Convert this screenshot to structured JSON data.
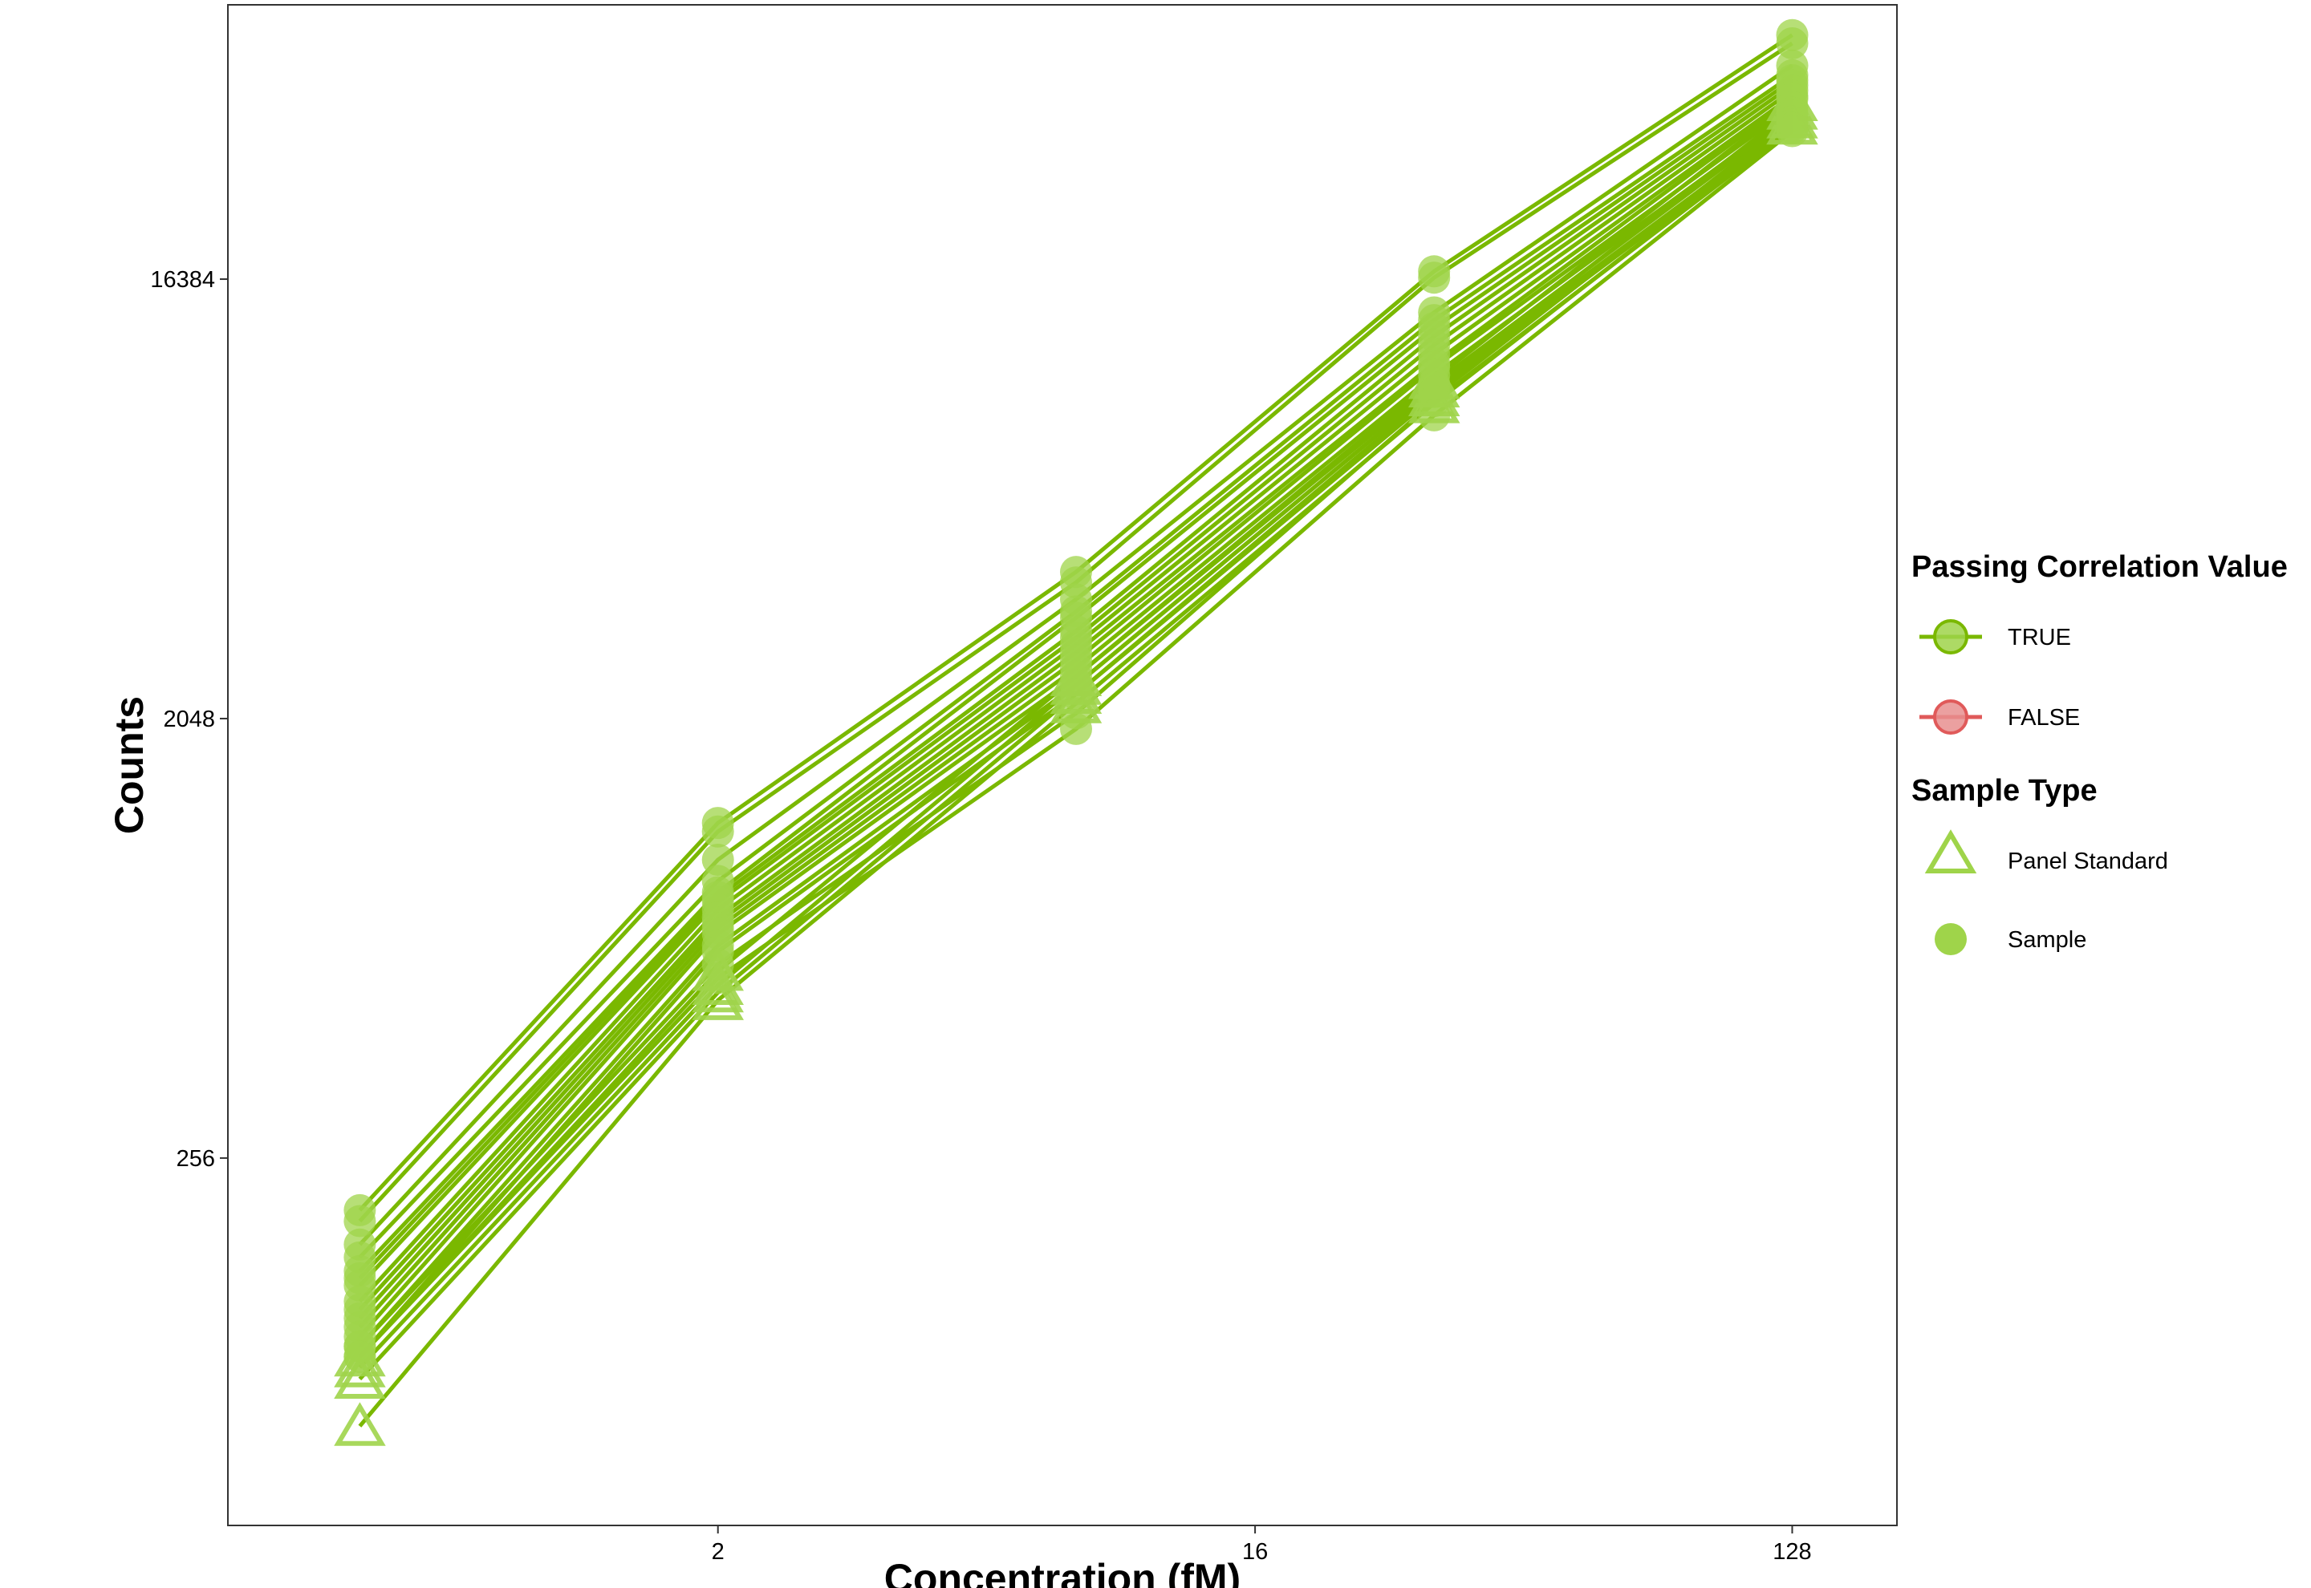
{
  "chart_data": {
    "type": "line",
    "title": "",
    "xlabel": "Concentration (fM)",
    "ylabel": "Counts",
    "x_scale": "log2",
    "y_scale": "log2",
    "x_ticks": [
      2,
      16,
      128
    ],
    "y_ticks": [
      256,
      2048,
      16384
    ],
    "xlim": [
      0.3,
      192
    ],
    "ylim": [
      45,
      60000
    ],
    "grid": false,
    "x": [
      0.5,
      2,
      8,
      32,
      128
    ],
    "colors": {
      "TRUE": "#7ab800",
      "FALSE": "#e05a5a",
      "marker": "#9fd44a"
    },
    "series": [
      {
        "group": "TRUE",
        "shape": "triangle",
        "values": [
          72,
          540,
          2200,
          9100,
          34000
        ]
      },
      {
        "group": "TRUE",
        "shape": "triangle",
        "values": [
          90,
          560,
          2300,
          9400,
          35000
        ]
      },
      {
        "group": "TRUE",
        "shape": "triangle",
        "values": [
          95,
          580,
          2400,
          9800,
          36500
        ]
      },
      {
        "group": "TRUE",
        "shape": "triangle",
        "values": [
          100,
          620,
          2500,
          10200,
          38000
        ]
      },
      {
        "group": "TRUE",
        "shape": "circle",
        "values": [
          200,
          1250,
          4100,
          17000,
          52000
        ]
      },
      {
        "group": "TRUE",
        "shape": "circle",
        "values": [
          190,
          1200,
          3900,
          16500,
          50000
        ]
      },
      {
        "group": "TRUE",
        "shape": "circle",
        "values": [
          170,
          1050,
          3600,
          14000,
          45000
        ]
      },
      {
        "group": "TRUE",
        "shape": "circle",
        "values": [
          160,
          950,
          3400,
          13500,
          43000
        ]
      },
      {
        "group": "TRUE",
        "shape": "circle",
        "values": [
          150,
          900,
          3300,
          13000,
          42000
        ]
      },
      {
        "group": "TRUE",
        "shape": "circle",
        "values": [
          145,
          880,
          3100,
          12500,
          41000
        ]
      },
      {
        "group": "TRUE",
        "shape": "circle",
        "values": [
          140,
          860,
          3000,
          12000,
          40000
        ]
      },
      {
        "group": "TRUE",
        "shape": "circle",
        "values": [
          130,
          830,
          2900,
          11500,
          39000
        ]
      },
      {
        "group": "TRUE",
        "shape": "circle",
        "values": [
          125,
          800,
          2800,
          11000,
          38500
        ]
      },
      {
        "group": "TRUE",
        "shape": "circle",
        "values": [
          120,
          780,
          2700,
          10800,
          37000
        ]
      },
      {
        "group": "TRUE",
        "shape": "circle",
        "values": [
          115,
          760,
          2600,
          10400,
          36000
        ]
      },
      {
        "group": "TRUE",
        "shape": "circle",
        "values": [
          110,
          740,
          2500,
          10000,
          35500
        ]
      },
      {
        "group": "TRUE",
        "shape": "circle",
        "values": [
          105,
          700,
          2400,
          9800,
          34500
        ]
      },
      {
        "group": "TRUE",
        "shape": "circle",
        "values": [
          100,
          680,
          2300,
          9600,
          34000
        ]
      },
      {
        "group": "TRUE",
        "shape": "circle",
        "values": [
          105,
          640,
          2100,
          9200,
          33500
        ]
      },
      {
        "group": "TRUE",
        "shape": "circle",
        "values": [
          100,
          600,
          1950,
          8600,
          33000
        ]
      }
    ],
    "legend": {
      "placement": "right",
      "groups": [
        {
          "title": "Passing Correlation Value",
          "items": [
            "TRUE",
            "FALSE"
          ]
        },
        {
          "title": "Sample Type",
          "items": [
            "Panel Standard",
            "Sample"
          ]
        }
      ]
    }
  }
}
